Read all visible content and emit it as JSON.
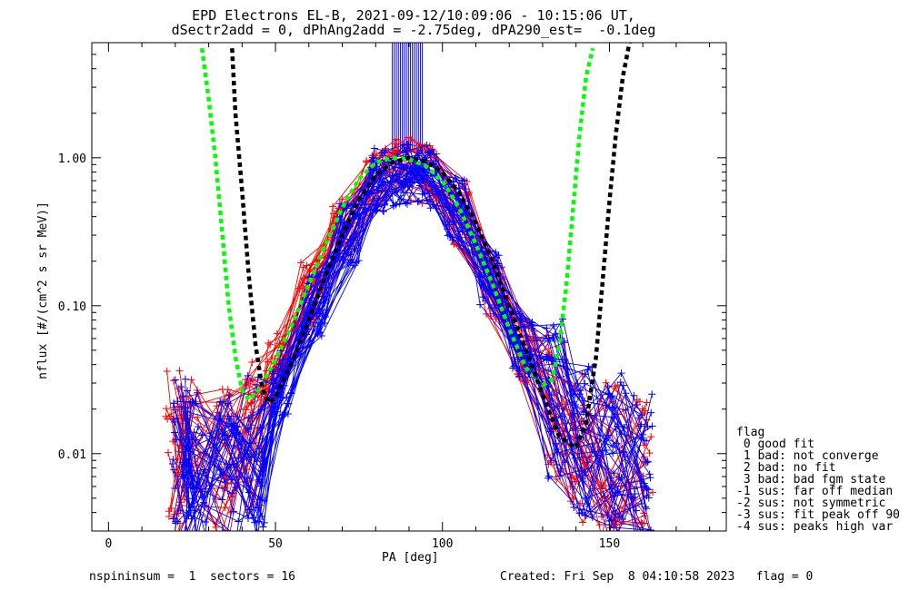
{
  "title": {
    "line1": "EPD Electrons EL-B, 2021-09-12/10:09:06 - 10:15:06 UT,",
    "line2": "dSectr2add = 0, dPhAng2add = -2.75deg, dPA290_est=  -0.1deg"
  },
  "footer": {
    "left": "nspininsum =  1  sectors = 16",
    "right": "Created: Fri Sep  8 04:10:58 2023   flag = 0"
  },
  "legend": {
    "title": "flag",
    "items": [
      " 0 good fit",
      " 1 bad: not converge",
      " 2 bad: no fit",
      " 3 bad: bad fgm state",
      "-1 sus: far off median",
      "-2 sus: not symmetric",
      "-3 sus: fit peak off 90",
      "-4 sus: peaks high var"
    ]
  },
  "colors": {
    "series_red": "#ff0000",
    "series_blue": "#0000ff",
    "fit_green": "#00ff00",
    "fit_black": "#000000"
  },
  "chart_data": {
    "type": "line",
    "title": "EPD Electrons EL-B, 2021-09-12/10:09:06 - 10:15:06 UT,",
    "subtitle": "dSectr2add = 0, dPhAng2add = -2.75deg, dPA290_est=  -0.1deg",
    "xlabel": "PA [deg]",
    "ylabel": "nflux [#/(cm^2 s sr MeV)]",
    "xlim": [
      -5,
      185
    ],
    "ylim": [
      0.003,
      6.0
    ],
    "yscale": "log",
    "xticks": [
      0,
      50,
      100,
      150
    ],
    "xtick_labels": [
      "0",
      "50",
      "100",
      "150"
    ],
    "yticks": [
      0.01,
      0.1,
      1.0
    ],
    "ytick_labels": [
      "0.01",
      "0.10",
      "1.00"
    ],
    "legend_position": "bottom-right, outside plot",
    "series": [
      {
        "color": "red",
        "marker": "+",
        "count": 28,
        "x": [
          20,
          24,
          35,
          43,
          50,
          60,
          70,
          80,
          88,
          96,
          106,
          116,
          125,
          134,
          141,
          150,
          160
        ],
        "y_median": [
          0.012,
          0.009,
          0.008,
          0.012,
          0.04,
          0.12,
          0.33,
          0.72,
          0.83,
          0.75,
          0.42,
          0.13,
          0.05,
          0.022,
          0.012,
          0.009,
          0.007
        ]
      },
      {
        "color": "blue",
        "marker": "+",
        "count": 40,
        "x": [
          22,
          26,
          36,
          44,
          52,
          62,
          72,
          81,
          88,
          95,
          104,
          114,
          124,
          134,
          142,
          152,
          160
        ],
        "y_median": [
          0.009,
          0.008,
          0.007,
          0.01,
          0.03,
          0.1,
          0.3,
          0.7,
          0.78,
          0.74,
          0.45,
          0.14,
          0.055,
          0.024,
          0.013,
          0.01,
          0.008
        ]
      },
      {
        "name": "fit-green",
        "color": "green",
        "style": "dashed",
        "x": [
          28,
          30,
          32,
          34,
          36,
          38,
          40,
          42,
          45,
          50,
          55,
          60,
          65,
          70,
          75,
          80,
          85,
          90,
          95,
          100,
          105,
          110,
          115,
          120,
          125,
          130,
          133,
          135,
          137,
          139,
          141,
          143,
          145
        ],
        "y": [
          5.5,
          2.5,
          1.0,
          0.32,
          0.1,
          0.045,
          0.027,
          0.023,
          0.027,
          0.043,
          0.075,
          0.14,
          0.26,
          0.46,
          0.72,
          0.93,
          1.0,
          0.98,
          0.88,
          0.7,
          0.46,
          0.26,
          0.14,
          0.07,
          0.038,
          0.029,
          0.032,
          0.055,
          0.13,
          0.42,
          1.4,
          3.5,
          5.5
        ]
      },
      {
        "name": "fit-black",
        "color": "black",
        "style": "dashed",
        "x": [
          37,
          38,
          40,
          42,
          44,
          46,
          48,
          50,
          55,
          60,
          65,
          70,
          75,
          80,
          85,
          90,
          95,
          100,
          105,
          110,
          115,
          120,
          125,
          130,
          135,
          140,
          143,
          146,
          148,
          150,
          152,
          154,
          156
        ],
        "y": [
          5.5,
          2.0,
          0.6,
          0.16,
          0.055,
          0.028,
          0.022,
          0.024,
          0.042,
          0.08,
          0.16,
          0.3,
          0.52,
          0.76,
          0.93,
          1.0,
          0.95,
          0.8,
          0.58,
          0.36,
          0.2,
          0.1,
          0.05,
          0.025,
          0.013,
          0.011,
          0.016,
          0.045,
          0.15,
          0.5,
          1.5,
          3.5,
          6.0
        ]
      },
      {
        "name": "vertical-band",
        "color": "blue",
        "x_range": [
          85,
          94
        ],
        "y_range": [
          1.1,
          6.0
        ]
      }
    ]
  }
}
